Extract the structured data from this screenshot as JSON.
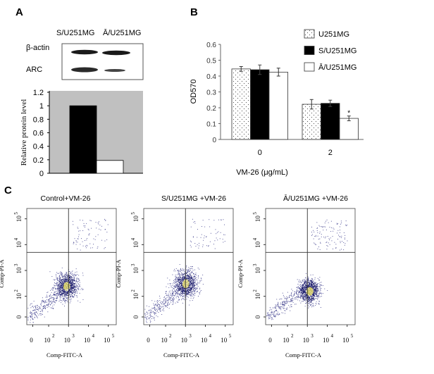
{
  "panels": {
    "a": "A",
    "b": "B",
    "c": "C"
  },
  "blot": {
    "lanes": [
      "S/U251MG",
      "Ā/U251MG"
    ],
    "rows": [
      "β-actin",
      "ARC"
    ]
  },
  "chart_data": [
    {
      "type": "bar",
      "panel": "A",
      "categories": [
        "S/U251MG",
        "Ā/U251MG"
      ],
      "values": [
        1.0,
        0.19
      ],
      "colors": [
        "#000000",
        "#ffffff"
      ],
      "background": "#c0c0c0",
      "ylabel": "Relative protein level",
      "ylim": [
        0,
        1.2
      ],
      "yticks": [
        "0",
        "0.2",
        "0.4",
        "0.6",
        "0.8",
        "1",
        "1.2"
      ]
    },
    {
      "type": "bar",
      "panel": "B",
      "categories": [
        "0",
        "2"
      ],
      "series": [
        {
          "name": "U251MG",
          "values": [
            0.445,
            0.222
          ],
          "errors": [
            0.015,
            0.03
          ],
          "fill": "dotted"
        },
        {
          "name": "S/U251MG",
          "values": [
            0.44,
            0.228
          ],
          "errors": [
            0.03,
            0.02
          ],
          "fill": "#000000"
        },
        {
          "name": "Ā/U251MG",
          "values": [
            0.425,
            0.133
          ],
          "errors": [
            0.025,
            0.015
          ],
          "fill": "#ffffff"
        }
      ],
      "annotations": [
        "*"
      ],
      "xlabel": "VM-26 (μg/mL)",
      "ylabel": "OD570",
      "ylim": [
        0,
        0.6
      ],
      "yticks": [
        "0",
        "0.1",
        "0.2",
        "0.3",
        "0.4",
        "0.5",
        "0.6"
      ],
      "legend": "top-right"
    },
    {
      "type": "scatter",
      "panel": "C",
      "plots": [
        {
          "title": "Control+VM-26",
          "center_log": [
            2.9,
            2.4
          ],
          "spread": 0.55,
          "upper_right_fraction": 0.06
        },
        {
          "title": "S/U251MG +VM-26",
          "center_log": [
            3.0,
            2.5
          ],
          "spread": 0.6,
          "upper_right_fraction": 0.05
        },
        {
          "title": "Ā/U251MG +VM-26",
          "center_log": [
            3.1,
            2.2
          ],
          "spread": 0.5,
          "upper_right_fraction": 0.08
        }
      ],
      "xlabel": "Comp-FITC-A",
      "ylabel": "Comp-PI-A",
      "xticks": [
        "0",
        "10",
        "10",
        "10",
        "10"
      ],
      "tick_exponents": [
        "",
        "2",
        "3",
        "4",
        "5"
      ],
      "yticks": [
        "0",
        "10",
        "10",
        "10",
        "10"
      ],
      "quadrant_gate_log": [
        3.0,
        3.7
      ]
    }
  ]
}
